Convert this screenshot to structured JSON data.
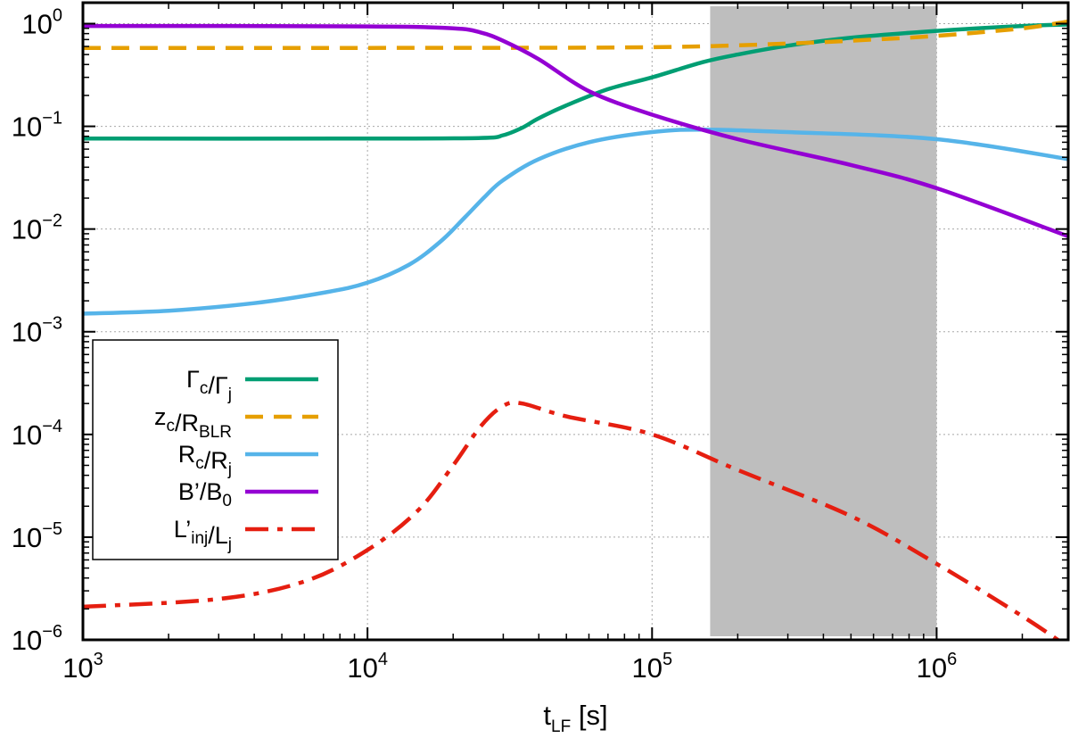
{
  "chart_data": {
    "type": "line",
    "title": "",
    "xlabel": {
      "base": "t",
      "sub": "LF",
      "suffix": " [s]"
    },
    "ylabel": "",
    "xscale": "log",
    "yscale": "log",
    "xlim": [
      1000,
      2900000
    ],
    "ylim": [
      1e-06,
      1.6
    ],
    "grid": true,
    "x_ticks": [
      {
        "base": "10",
        "exp": "3",
        "value": 1000
      },
      {
        "base": "10",
        "exp": "4",
        "value": 10000
      },
      {
        "base": "10",
        "exp": "5",
        "value": 100000
      },
      {
        "base": "10",
        "exp": "6",
        "value": 1000000
      }
    ],
    "y_ticks": [
      {
        "base": "10",
        "exp": "0",
        "value": 1
      },
      {
        "base": "10",
        "exp": "−1",
        "value": 0.1
      },
      {
        "base": "10",
        "exp": "−2",
        "value": 0.01
      },
      {
        "base": "10",
        "exp": "−3",
        "value": 0.001
      },
      {
        "base": "10",
        "exp": "−4",
        "value": 0.0001
      },
      {
        "base": "10",
        "exp": "−5",
        "value": 1e-05
      },
      {
        "base": "10",
        "exp": "−6",
        "value": 1e-06
      }
    ],
    "shaded_region": {
      "x": [
        160000,
        1000000
      ],
      "color": "#bebebe"
    },
    "legend_position": "lower-left",
    "series": [
      {
        "id": "gamma",
        "name": "Γc/Γj",
        "label_parts": [
          [
            "Γ",
            "c"
          ],
          [
            "/Γ",
            "j"
          ]
        ],
        "color": "#009e73",
        "dash": "",
        "points": [
          [
            1000,
            0.076
          ],
          [
            10000,
            0.076
          ],
          [
            25000,
            0.077
          ],
          [
            30000,
            0.082
          ],
          [
            35000,
            0.097
          ],
          [
            40000,
            0.12
          ],
          [
            50000,
            0.16
          ],
          [
            70000,
            0.23
          ],
          [
            100000,
            0.3
          ],
          [
            150000,
            0.42
          ],
          [
            200000,
            0.5
          ],
          [
            300000,
            0.61
          ],
          [
            500000,
            0.73
          ],
          [
            1000000,
            0.85
          ],
          [
            2000000,
            0.95
          ],
          [
            2900000,
            0.98
          ]
        ]
      },
      {
        "id": "zc",
        "name": "zc/RBLR",
        "label_parts": [
          [
            "z",
            "c"
          ],
          [
            "/R",
            "BLR"
          ]
        ],
        "color": "#e69f00",
        "dash": "20,12",
        "points": [
          [
            1000,
            0.58
          ],
          [
            10000,
            0.58
          ],
          [
            100000,
            0.59
          ],
          [
            300000,
            0.64
          ],
          [
            600000,
            0.7
          ],
          [
            1000000,
            0.76
          ],
          [
            2000000,
            0.9
          ],
          [
            2900000,
            1.05
          ]
        ]
      },
      {
        "id": "rc",
        "name": "Rc/Rj",
        "label_parts": [
          [
            "R",
            "c"
          ],
          [
            "/R",
            "j"
          ]
        ],
        "color": "#56b4e9",
        "dash": "",
        "points": [
          [
            1000,
            0.0015
          ],
          [
            2000,
            0.0016
          ],
          [
            4000,
            0.0019
          ],
          [
            7000,
            0.0024
          ],
          [
            10000,
            0.003
          ],
          [
            14000,
            0.0045
          ],
          [
            18000,
            0.0075
          ],
          [
            22000,
            0.013
          ],
          [
            26000,
            0.021
          ],
          [
            30000,
            0.03
          ],
          [
            40000,
            0.048
          ],
          [
            60000,
            0.07
          ],
          [
            100000,
            0.088
          ],
          [
            150000,
            0.093
          ],
          [
            300000,
            0.088
          ],
          [
            1000000,
            0.075
          ],
          [
            2900000,
            0.048
          ]
        ]
      },
      {
        "id": "bfield",
        "name": "B'/B0",
        "label_parts": [
          [
            "B’",
            ""
          ],
          [
            "/B",
            "0"
          ]
        ],
        "color": "#9400d3",
        "dash": "",
        "points": [
          [
            1000,
            0.95
          ],
          [
            10000,
            0.94
          ],
          [
            20000,
            0.9
          ],
          [
            25000,
            0.82
          ],
          [
            30000,
            0.68
          ],
          [
            40000,
            0.45
          ],
          [
            60000,
            0.22
          ],
          [
            100000,
            0.13
          ],
          [
            200000,
            0.075
          ],
          [
            500000,
            0.042
          ],
          [
            1000000,
            0.025
          ],
          [
            2900000,
            0.0085
          ]
        ]
      },
      {
        "id": "linj",
        "name": "L'inj/Lj",
        "label_parts": [
          [
            "L’",
            "inj"
          ],
          [
            "/L",
            "j"
          ]
        ],
        "color": "#e51e10",
        "dash": "26,10,6,10",
        "points": [
          [
            1000,
            2.1e-06
          ],
          [
            3000,
            2.5e-06
          ],
          [
            6000,
            3.7e-06
          ],
          [
            10000,
            7.5e-06
          ],
          [
            15000,
            1.8e-05
          ],
          [
            20000,
            5e-05
          ],
          [
            25000,
            0.00012
          ],
          [
            30000,
            0.00019
          ],
          [
            35000,
            0.0002
          ],
          [
            50000,
            0.00015
          ],
          [
            100000,
            0.0001
          ],
          [
            200000,
            4.5e-05
          ],
          [
            500000,
            1.6e-05
          ],
          [
            1000000,
            5.5e-06
          ],
          [
            2000000,
            1.7e-06
          ],
          [
            2900000,
            8.5e-07
          ]
        ]
      }
    ]
  }
}
